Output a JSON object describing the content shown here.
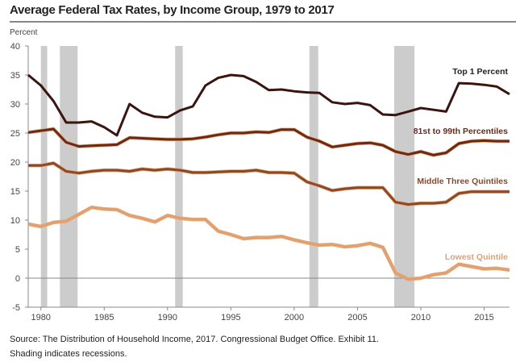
{
  "chart_data": {
    "type": "line",
    "title": "Average Federal Tax Rates, by Income Group, 1979 to 2017",
    "ylabel": "Percent",
    "xlim": [
      1979,
      2017
    ],
    "ylim": [
      -5,
      40
    ],
    "yticks": [
      -5,
      0,
      5,
      10,
      15,
      20,
      25,
      30,
      35,
      40
    ],
    "xticks": [
      1980,
      1985,
      1990,
      1995,
      2000,
      2005,
      2010,
      2015
    ],
    "grid": false,
    "x": [
      1979,
      1980,
      1981,
      1982,
      1983,
      1984,
      1985,
      1986,
      1987,
      1988,
      1989,
      1990,
      1991,
      1992,
      1993,
      1994,
      1995,
      1996,
      1997,
      1998,
      1999,
      2000,
      2001,
      2002,
      2003,
      2004,
      2005,
      2006,
      2007,
      2008,
      2009,
      2010,
      2011,
      2012,
      2013,
      2014,
      2015,
      2016,
      2017
    ],
    "series": [
      {
        "name": "Top 1 Percent",
        "color": "#3a1510",
        "values": [
          35,
          33.2,
          30.5,
          26.8,
          26.8,
          27,
          26,
          24.6,
          30,
          28.5,
          27.8,
          27.7,
          28.9,
          29.6,
          33.2,
          34.5,
          35,
          34.8,
          33.8,
          32.4,
          32.5,
          32.2,
          32,
          31.9,
          30.3,
          30,
          30.2,
          29.8,
          28.2,
          28.1,
          28.7,
          29.3,
          29,
          28.7,
          33.6,
          33.5,
          33.3,
          33,
          31.7
        ]
      },
      {
        "name": "81st to 99th Percentiles",
        "color": "#6b2a18",
        "values": [
          25.1,
          25.4,
          25.7,
          23.4,
          22.7,
          22.8,
          22.9,
          23,
          24.2,
          24.1,
          24,
          23.9,
          23.9,
          24,
          24.3,
          24.7,
          25,
          25,
          25.2,
          25.1,
          25.6,
          25.6,
          24.3,
          23.6,
          22.6,
          22.9,
          23.2,
          23.3,
          22.9,
          21.8,
          21.3,
          21.8,
          21.2,
          21.6,
          23.2,
          23.6,
          23.7,
          23.6,
          23.6
        ]
      },
      {
        "name": "Middle Three Quintiles",
        "color": "#8a4a28",
        "values": [
          19.4,
          19.4,
          19.8,
          18.4,
          18.1,
          18.4,
          18.6,
          18.6,
          18.4,
          18.8,
          18.6,
          18.8,
          18.6,
          18.2,
          18.2,
          18.3,
          18.4,
          18.4,
          18.6,
          18.2,
          18.2,
          18.1,
          16.6,
          15.9,
          15.1,
          15.4,
          15.6,
          15.6,
          15.6,
          13.1,
          12.7,
          12.9,
          12.9,
          13.1,
          14.6,
          14.9,
          14.9,
          14.9,
          14.9
        ]
      },
      {
        "name": "Lowest Quintile",
        "color": "#e0a070",
        "values": [
          9.3,
          8.9,
          9.6,
          9.8,
          11,
          12.2,
          11.9,
          11.8,
          10.8,
          10.3,
          9.7,
          10.8,
          10.3,
          10.1,
          10.1,
          8.1,
          7.5,
          6.8,
          7,
          7,
          7.2,
          6.6,
          6.1,
          5.7,
          5.8,
          5.4,
          5.6,
          6,
          5.3,
          0.9,
          -0.2,
          0,
          0.6,
          0.9,
          2.4,
          2,
          1.6,
          1.7,
          1.4
        ]
      }
    ],
    "recessions": [
      [
        1980.0,
        1980.5
      ],
      [
        1981.5,
        1982.9
      ],
      [
        1990.6,
        1991.2
      ],
      [
        2001.2,
        2001.9
      ],
      [
        2007.9,
        2009.5
      ]
    ],
    "recession_color": "#cccccc",
    "source": "Source: The Distribution of Household Income, 2017. Congressional Budget Office. Exhibit 11.",
    "note": "Shading indicates recessions."
  }
}
